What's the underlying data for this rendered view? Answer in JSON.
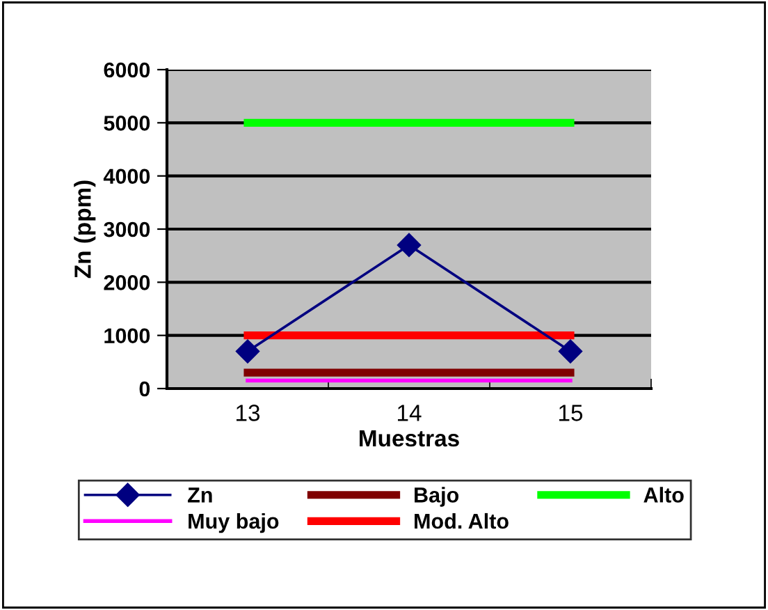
{
  "chart_data": {
    "type": "line",
    "xlabel": "Muestras",
    "ylabel": "Zn (ppm)",
    "categories": [
      "13",
      "14",
      "15"
    ],
    "series": [
      {
        "name": "Zn",
        "color": "#000080",
        "values": [
          700,
          2700,
          700
        ],
        "marker": "diamond"
      },
      {
        "name": "Muy bajo",
        "color": "#ff00ff",
        "values": [
          150,
          150,
          150
        ],
        "marker": "none"
      },
      {
        "name": "Bajo",
        "color": "#800000",
        "values": [
          300,
          300,
          300
        ],
        "marker": "none"
      },
      {
        "name": "Mod. Alto",
        "color": "#ff0000",
        "values": [
          1000,
          1000,
          1000
        ],
        "marker": "none"
      },
      {
        "name": "Alto",
        "color": "#00ff00",
        "values": [
          5000,
          5000,
          5000
        ],
        "marker": "none"
      }
    ],
    "ylim": [
      0,
      6000
    ],
    "yticks": [
      0,
      1000,
      2000,
      3000,
      4000,
      5000,
      6000
    ],
    "grid": "y",
    "legend": "bottom"
  }
}
